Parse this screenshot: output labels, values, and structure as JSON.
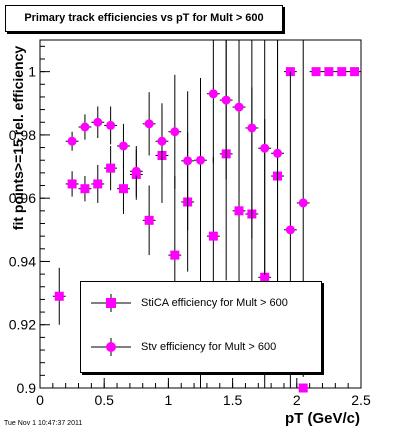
{
  "chart_data": {
    "type": "scatter",
    "title": "Primary track efficiencies vs pT for Mult > 600",
    "xlabel": "pT (GeV/c)",
    "ylabel": "fit points>=15 rel. efficiency",
    "xlim": [
      0,
      2.5
    ],
    "ylim": [
      0.9,
      1.01
    ],
    "x_ticks": [
      0,
      0.5,
      1,
      1.5,
      2,
      2.5
    ],
    "x_tick_labels": [
      "0",
      "0.5",
      "1",
      "1.5",
      "2",
      "2.5"
    ],
    "y_ticks": [
      0.9,
      0.92,
      0.94,
      0.96,
      0.98,
      1.0
    ],
    "y_tick_labels": [
      "0.9",
      "0.92",
      "0.94",
      "0.96",
      "0.98",
      "1"
    ],
    "grid": false,
    "legend_position": "bottom-center",
    "colors": {
      "marker": "#ff00ff",
      "errorbar": "#000000"
    },
    "series": [
      {
        "name": "StiCA efficiency  for Mult > 600",
        "marker": "square",
        "x": [
          0.15,
          0.25,
          0.35,
          0.45,
          0.55,
          0.65,
          0.75,
          0.85,
          0.95,
          1.05,
          1.15,
          1.25,
          1.35,
          1.45,
          1.55,
          1.65,
          1.75,
          1.85,
          1.95,
          2.05,
          2.15,
          2.25,
          2.35,
          2.45
        ],
        "y": [
          0.929,
          0.9645,
          0.963,
          0.9645,
          0.9695,
          0.963,
          0.9675,
          0.953,
          0.9735,
          0.942,
          0.9588,
          0.9288,
          0.948,
          0.974,
          0.956,
          0.955,
          0.935,
          0.967,
          1.0,
          0.9,
          1.0,
          1.0,
          1.0,
          1.0
        ],
        "err": [
          0.009,
          0.004,
          0.004,
          0.006,
          0.007,
          0.008,
          0.008,
          0.011,
          0.015,
          0.025,
          0.022,
          0.03,
          0.025,
          0.04,
          0.046,
          0.04,
          0.05,
          0.05,
          0.0,
          0.0,
          0.0,
          0.0,
          0.0,
          0.0
        ]
      },
      {
        "name": "Stv efficiency  for Mult > 600",
        "marker": "circle",
        "x": [
          0.25,
          0.35,
          0.45,
          0.55,
          0.65,
          0.75,
          0.85,
          0.95,
          1.05,
          1.15,
          1.25,
          1.35,
          1.45,
          1.55,
          1.65,
          1.75,
          1.85,
          1.95,
          2.05
        ],
        "y": [
          0.978,
          0.9825,
          0.984,
          0.983,
          0.9765,
          0.9685,
          0.9835,
          0.978,
          0.981,
          0.9718,
          0.972,
          0.993,
          0.991,
          0.9888,
          0.9822,
          0.9758,
          0.9742,
          0.95,
          0.9585
        ],
        "err": [
          0.003,
          0.004,
          0.005,
          0.006,
          0.007,
          0.008,
          0.01,
          0.012,
          0.018,
          0.022,
          0.026,
          0.022,
          0.025,
          0.027,
          0.035,
          0.04,
          0.045,
          0.05,
          0.055
        ]
      }
    ]
  },
  "footer": {
    "timestamp": "Tue Nov  1 10:47:37 2011"
  }
}
